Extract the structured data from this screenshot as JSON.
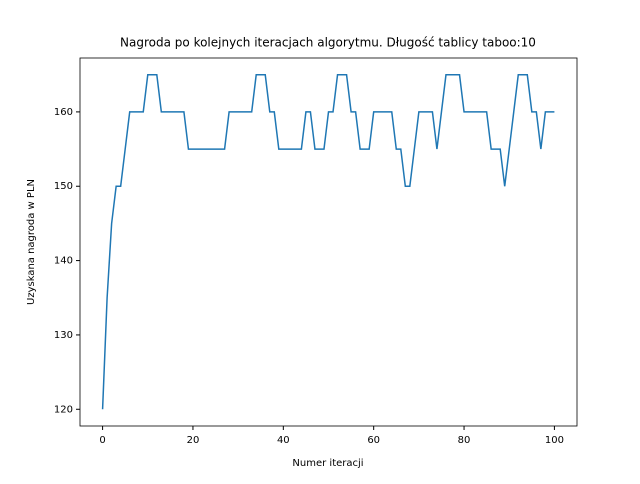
{
  "chart_data": {
    "type": "line",
    "title": "Nagroda po kolejnych iteracjach algorytmu. Długość tablicy taboo:10",
    "xlabel": "Numer iteracji",
    "ylabel": "Uzyskana nagroda w PLN",
    "x": [
      0,
      1,
      2,
      3,
      4,
      5,
      6,
      7,
      8,
      9,
      10,
      11,
      12,
      13,
      14,
      15,
      16,
      17,
      18,
      19,
      20,
      21,
      22,
      23,
      24,
      25,
      26,
      27,
      28,
      29,
      30,
      31,
      32,
      33,
      34,
      35,
      36,
      37,
      38,
      39,
      40,
      41,
      42,
      43,
      44,
      45,
      46,
      47,
      48,
      49,
      50,
      51,
      52,
      53,
      54,
      55,
      56,
      57,
      58,
      59,
      60,
      61,
      62,
      63,
      64,
      65,
      66,
      67,
      68,
      69,
      70,
      71,
      72,
      73,
      74,
      75,
      76,
      77,
      78,
      79,
      80,
      81,
      82,
      83,
      84,
      85,
      86,
      87,
      88,
      89,
      90,
      91,
      92,
      93,
      94,
      95,
      96,
      97,
      98,
      99,
      100
    ],
    "series": [
      {
        "color": "#1f77b4",
        "values": [
          120,
          135,
          145,
          150,
          150,
          155,
          160,
          160,
          160,
          160,
          165,
          165,
          165,
          160,
          160,
          160,
          160,
          160,
          160,
          155,
          155,
          155,
          155,
          155,
          155,
          155,
          155,
          155,
          160,
          160,
          160,
          160,
          160,
          160,
          165,
          165,
          165,
          160,
          160,
          155,
          155,
          155,
          155,
          155,
          155,
          160,
          160,
          155,
          155,
          155,
          160,
          160,
          165,
          165,
          165,
          160,
          160,
          155,
          155,
          155,
          160,
          160,
          160,
          160,
          160,
          155,
          155,
          150,
          150,
          155,
          160,
          160,
          160,
          160,
          155,
          160,
          165,
          165,
          165,
          165,
          160,
          160,
          160,
          160,
          160,
          160,
          155,
          155,
          155,
          150,
          155,
          160,
          165,
          165,
          165,
          160,
          160,
          155,
          160,
          160,
          160
        ]
      }
    ],
    "xlim": [
      -5,
      105
    ],
    "ylim": [
      117.75,
      167.25
    ],
    "xticks": [
      0,
      20,
      40,
      60,
      80,
      100
    ],
    "yticks": [
      120,
      130,
      140,
      150,
      160
    ]
  }
}
